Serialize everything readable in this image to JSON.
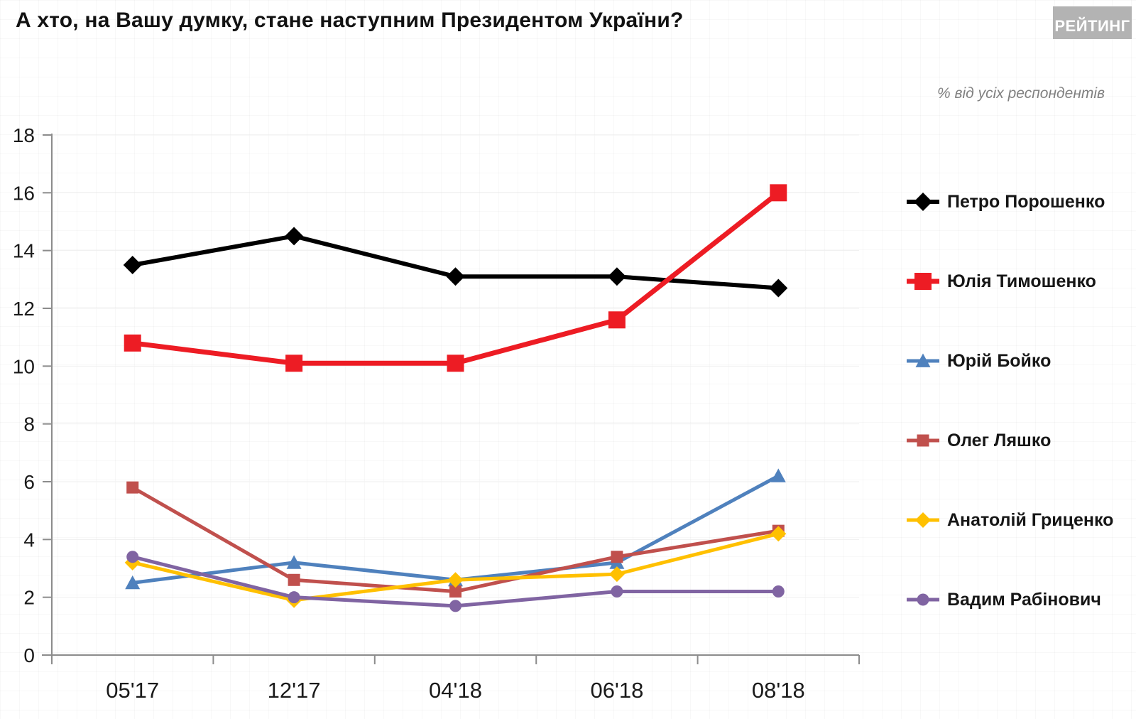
{
  "header": {
    "title": "А хто, на Вашу думку, стане наступним Президентом України?",
    "logo": "РЕЙТИНГ",
    "subtitle": "% від усіх респондентів"
  },
  "chart_data": {
    "type": "line",
    "title": "А хто, на Вашу думку, стане наступним Президентом України?",
    "subtitle": "% від усіх респондентів",
    "categories": [
      "05'17",
      "12'17",
      "04'18",
      "06'18",
      "08'18"
    ],
    "series": [
      {
        "name": "Петро Порошенко",
        "color": "#000000",
        "marker": "diamond",
        "marker_size": 26,
        "line_width": 6,
        "values": [
          13.5,
          14.5,
          13.1,
          13.1,
          12.7
        ]
      },
      {
        "name": "Юлія Тимошенко",
        "color": "#ed1c24",
        "marker": "square",
        "marker_size": 24,
        "line_width": 7,
        "values": [
          10.8,
          10.1,
          10.1,
          11.6,
          16.0
        ]
      },
      {
        "name": "Юрій Бойко",
        "color": "#4f81bd",
        "marker": "triangle",
        "marker_size": 21,
        "line_width": 5,
        "values": [
          2.5,
          3.2,
          2.6,
          3.2,
          6.2
        ]
      },
      {
        "name": "Олег Ляшко",
        "color": "#c0504d",
        "marker": "square",
        "marker_size": 17,
        "line_width": 5,
        "values": [
          5.8,
          2.6,
          2.2,
          3.4,
          4.3
        ]
      },
      {
        "name": "Анатолій Гриценко",
        "color": "#ffc000",
        "marker": "diamond",
        "marker_size": 22,
        "line_width": 5,
        "values": [
          3.2,
          1.9,
          2.6,
          2.8,
          4.2
        ]
      },
      {
        "name": "Вадим Рабінович",
        "color": "#8064a2",
        "marker": "circle",
        "marker_size": 17,
        "line_width": 5,
        "values": [
          3.4,
          2.0,
          1.7,
          2.2,
          2.2
        ]
      }
    ],
    "xlabel": "",
    "ylabel": "",
    "ylim": [
      0,
      18
    ],
    "yticks": [
      0,
      2,
      4,
      6,
      8,
      10,
      12,
      14,
      16,
      18
    ],
    "grid": true,
    "legend_position": "right"
  }
}
